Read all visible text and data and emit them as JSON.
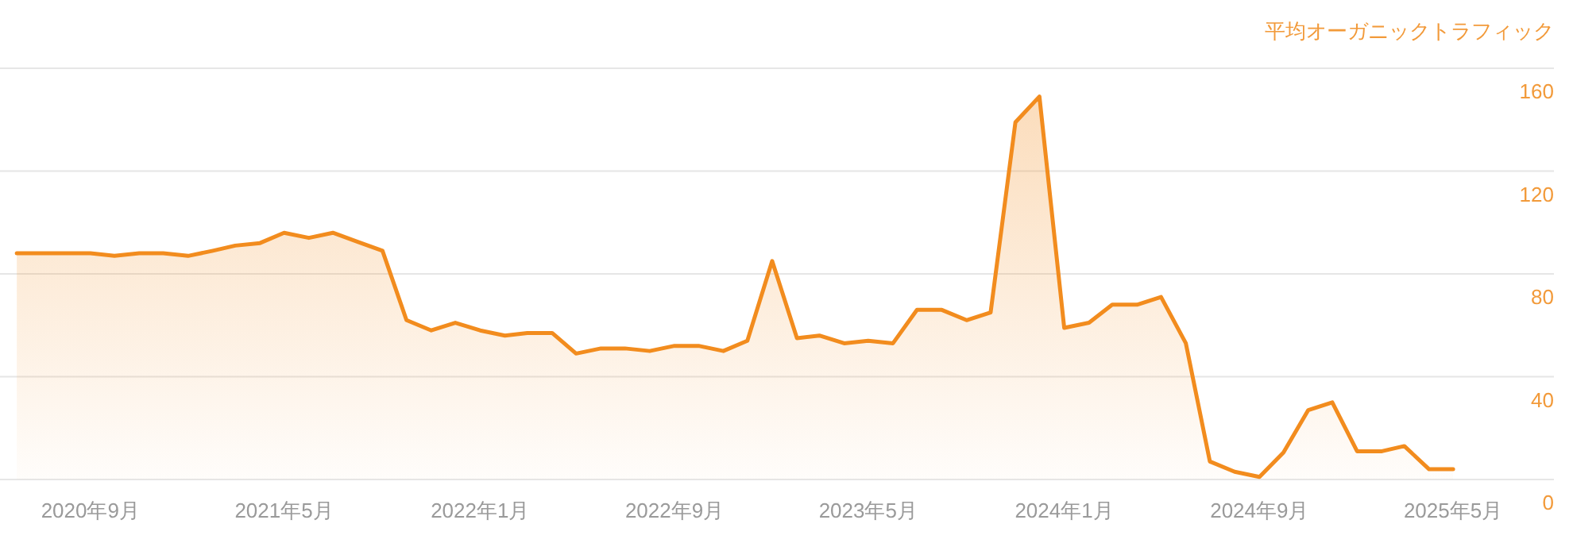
{
  "chart_data": {
    "type": "area",
    "ylabel": "平均オーガニックトラフィック",
    "xlim": [
      "2020-05-11",
      "2025-09-04"
    ],
    "ylim": [
      0,
      160
    ],
    "xticks": [
      {
        "value": "2020-09",
        "label": "2020年9月"
      },
      {
        "value": "2021-05",
        "label": "2021年5月"
      },
      {
        "value": "2022-01",
        "label": "2022年1月"
      },
      {
        "value": "2022-09",
        "label": "2022年9月"
      },
      {
        "value": "2023-05",
        "label": "2023年5月"
      },
      {
        "value": "2024-01",
        "label": "2024年1月"
      },
      {
        "value": "2024-09",
        "label": "2024年9月"
      },
      {
        "value": "2025-05",
        "label": "2025年5月"
      }
    ],
    "yticks": [
      0,
      40,
      80,
      120,
      160
    ],
    "grid": "y",
    "x": [
      "2020-06",
      "2020-07",
      "2020-08",
      "2020-09",
      "2020-10",
      "2020-11",
      "2020-12",
      "2021-01",
      "2021-02",
      "2021-03",
      "2021-04",
      "2021-05",
      "2021-06",
      "2021-07",
      "2021-08",
      "2021-09",
      "2021-10",
      "2021-11",
      "2021-12",
      "2022-01",
      "2022-02",
      "2022-03",
      "2022-04",
      "2022-05",
      "2022-06",
      "2022-07",
      "2022-08",
      "2022-09",
      "2022-10",
      "2022-11",
      "2022-12",
      "2023-01",
      "2023-02",
      "2023-03",
      "2023-04",
      "2023-05",
      "2023-06",
      "2023-07",
      "2023-08",
      "2023-09",
      "2023-10",
      "2023-11",
      "2023-12",
      "2024-01",
      "2024-02",
      "2024-03",
      "2024-04",
      "2024-05",
      "2024-06",
      "2024-07",
      "2024-08",
      "2024-09",
      "2024-10",
      "2024-11",
      "2024-12",
      "2025-01",
      "2025-02",
      "2025-03",
      "2025-04",
      "2025-05"
    ],
    "series": [
      {
        "color": "#f28c1e",
        "values": [
          88,
          88,
          88,
          88,
          87,
          88,
          88,
          87,
          89,
          91,
          92,
          96,
          94,
          96,
          92.5,
          89,
          62,
          58,
          61,
          58,
          56,
          57,
          57,
          49,
          51,
          51,
          50,
          52,
          52,
          50,
          54,
          85,
          55,
          56,
          53,
          54,
          53,
          66,
          66,
          62,
          65,
          139,
          149,
          59,
          61,
          68,
          68,
          71,
          53,
          7,
          3,
          1,
          10.5,
          27,
          30,
          11,
          11,
          13,
          4,
          4
        ]
      }
    ]
  }
}
